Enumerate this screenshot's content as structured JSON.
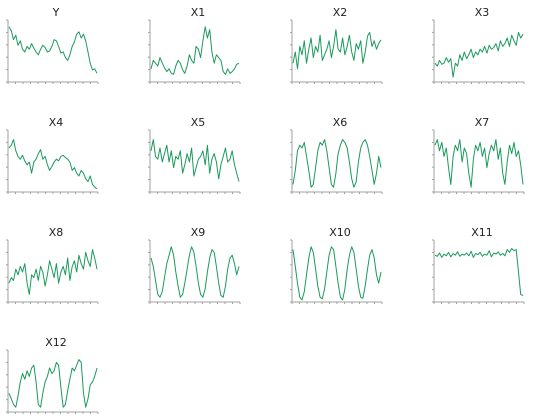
{
  "colors": {
    "line": "#1a9a5c",
    "axis": "#a0a0a0",
    "tick": "#a0a0a0",
    "title": "#222222"
  },
  "chart_data": [
    {
      "type": "line",
      "title": "Y",
      "grid": false,
      "x": [
        1,
        2,
        3,
        4,
        5,
        6,
        7,
        8,
        9,
        10,
        11,
        12,
        13,
        14,
        15,
        16,
        17,
        18,
        19,
        20,
        21,
        22,
        23,
        24,
        25,
        26,
        27,
        28,
        29,
        30,
        31,
        32,
        33,
        34,
        35,
        36,
        37,
        38,
        39,
        40
      ],
      "values": [
        0.95,
        0.88,
        0.72,
        0.8,
        0.62,
        0.7,
        0.55,
        0.5,
        0.6,
        0.55,
        0.65,
        0.57,
        0.5,
        0.45,
        0.55,
        0.62,
        0.58,
        0.5,
        0.52,
        0.6,
        0.72,
        0.7,
        0.6,
        0.48,
        0.5,
        0.4,
        0.35,
        0.45,
        0.6,
        0.68,
        0.82,
        0.86,
        0.75,
        0.82,
        0.7,
        0.5,
        0.3,
        0.18,
        0.2,
        0.12
      ],
      "ylim": [
        0,
        1
      ]
    },
    {
      "type": "line",
      "title": "X1",
      "grid": false,
      "x": [
        1,
        2,
        3,
        4,
        5,
        6,
        7,
        8,
        9,
        10,
        11,
        12,
        13,
        14,
        15,
        16,
        17,
        18,
        19,
        20,
        21,
        22,
        23,
        24,
        25,
        26,
        27,
        28,
        29,
        30,
        31,
        32,
        33,
        34,
        35,
        36,
        37,
        38,
        39,
        40
      ],
      "values": [
        0.2,
        0.35,
        0.3,
        0.25,
        0.4,
        0.3,
        0.22,
        0.15,
        0.2,
        0.12,
        0.1,
        0.25,
        0.35,
        0.3,
        0.18,
        0.12,
        0.25,
        0.45,
        0.35,
        0.3,
        0.6,
        0.55,
        0.4,
        0.7,
        0.95,
        0.75,
        0.9,
        0.5,
        0.3,
        0.45,
        0.4,
        0.35,
        0.15,
        0.1,
        0.2,
        0.12,
        0.15,
        0.2,
        0.28,
        0.3
      ],
      "ylim": [
        0,
        1
      ]
    },
    {
      "type": "line",
      "title": "X2",
      "grid": false,
      "x": [
        1,
        2,
        3,
        4,
        5,
        6,
        7,
        8,
        9,
        10,
        11,
        12,
        13,
        14,
        15,
        16,
        17,
        18,
        19,
        20,
        21,
        22,
        23,
        24,
        25,
        26,
        27,
        28,
        29,
        30,
        31,
        32,
        33,
        34,
        35,
        36,
        37,
        38,
        39,
        40
      ],
      "values": [
        0.3,
        0.5,
        0.2,
        0.6,
        0.45,
        0.7,
        0.3,
        0.55,
        0.75,
        0.4,
        0.6,
        0.5,
        0.8,
        0.35,
        0.45,
        0.55,
        0.7,
        0.4,
        0.6,
        0.9,
        0.55,
        0.5,
        0.75,
        0.45,
        0.6,
        0.8,
        0.5,
        0.35,
        0.65,
        0.55,
        0.7,
        0.3,
        0.5,
        0.78,
        0.85,
        0.6,
        0.7,
        0.55,
        0.65,
        0.72
      ],
      "ylim": [
        0,
        1
      ]
    },
    {
      "type": "line",
      "title": "X3",
      "grid": false,
      "x": [
        1,
        2,
        3,
        4,
        5,
        6,
        7,
        8,
        9,
        10,
        11,
        12,
        13,
        14,
        15,
        16,
        17,
        18,
        19,
        20,
        21,
        22,
        23,
        24,
        25,
        26,
        27,
        28,
        29,
        30,
        31,
        32,
        33,
        34,
        35,
        36,
        37,
        38,
        39,
        40
      ],
      "values": [
        0.3,
        0.25,
        0.35,
        0.28,
        0.3,
        0.4,
        0.32,
        0.38,
        0.05,
        0.3,
        0.25,
        0.45,
        0.35,
        0.5,
        0.38,
        0.45,
        0.55,
        0.4,
        0.5,
        0.45,
        0.55,
        0.5,
        0.6,
        0.48,
        0.62,
        0.55,
        0.58,
        0.65,
        0.52,
        0.7,
        0.6,
        0.65,
        0.75,
        0.6,
        0.8,
        0.7,
        0.62,
        0.85,
        0.75,
        0.82
      ],
      "ylim": [
        0,
        1
      ]
    },
    {
      "type": "line",
      "title": "X4",
      "grid": false,
      "x": [
        1,
        2,
        3,
        4,
        5,
        6,
        7,
        8,
        9,
        10,
        11,
        12,
        13,
        14,
        15,
        16,
        17,
        18,
        19,
        20,
        21,
        22,
        23,
        24,
        25,
        26,
        27,
        28,
        29,
        30,
        31,
        32,
        33,
        34,
        35,
        36,
        37,
        38,
        39,
        40
      ],
      "values": [
        0.75,
        0.8,
        0.9,
        0.7,
        0.6,
        0.55,
        0.62,
        0.52,
        0.45,
        0.5,
        0.3,
        0.5,
        0.55,
        0.65,
        0.72,
        0.55,
        0.6,
        0.45,
        0.35,
        0.42,
        0.5,
        0.55,
        0.52,
        0.6,
        0.62,
        0.58,
        0.55,
        0.5,
        0.35,
        0.4,
        0.3,
        0.25,
        0.35,
        0.3,
        0.2,
        0.15,
        0.25,
        0.1,
        0.05,
        0.02
      ],
      "ylim": [
        0,
        1
      ]
    },
    {
      "type": "line",
      "title": "X5",
      "grid": false,
      "x": [
        1,
        2,
        3,
        4,
        5,
        6,
        7,
        8,
        9,
        10,
        11,
        12,
        13,
        14,
        15,
        16,
        17,
        18,
        19,
        20,
        21,
        22,
        23,
        24,
        25,
        26,
        27,
        28,
        29,
        30,
        31,
        32,
        33,
        34,
        35,
        36,
        37,
        38,
        39,
        40
      ],
      "values": [
        0.7,
        0.9,
        0.6,
        0.55,
        0.75,
        0.5,
        0.65,
        0.8,
        0.5,
        0.7,
        0.4,
        0.6,
        0.55,
        0.7,
        0.3,
        0.45,
        0.65,
        0.5,
        0.75,
        0.25,
        0.4,
        0.55,
        0.6,
        0.7,
        0.45,
        0.8,
        0.3,
        0.55,
        0.65,
        0.5,
        0.2,
        0.45,
        0.6,
        0.75,
        0.5,
        0.55,
        0.7,
        0.45,
        0.3,
        0.15
      ],
      "ylim": [
        0,
        1
      ]
    },
    {
      "type": "line",
      "title": "X6",
      "grid": false,
      "x": [
        1,
        2,
        3,
        4,
        5,
        6,
        7,
        8,
        9,
        10,
        11,
        12,
        13,
        14,
        15,
        16,
        17,
        18,
        19,
        20,
        21,
        22,
        23,
        24,
        25,
        26,
        27,
        28,
        29,
        30,
        31,
        32,
        33,
        34,
        35,
        36,
        37,
        38,
        39,
        40
      ],
      "values": [
        0.1,
        0.35,
        0.7,
        0.8,
        0.75,
        0.85,
        0.6,
        0.35,
        0.05,
        0.1,
        0.4,
        0.7,
        0.85,
        0.8,
        0.9,
        0.7,
        0.4,
        0.1,
        0.05,
        0.3,
        0.65,
        0.8,
        0.9,
        0.85,
        0.75,
        0.5,
        0.2,
        0.05,
        0.15,
        0.5,
        0.75,
        0.85,
        0.9,
        0.8,
        0.6,
        0.35,
        0.1,
        0.3,
        0.6,
        0.4
      ],
      "ylim": [
        0,
        1
      ]
    },
    {
      "type": "line",
      "title": "X7",
      "grid": false,
      "x": [
        1,
        2,
        3,
        4,
        5,
        6,
        7,
        8,
        9,
        10,
        11,
        12,
        13,
        14,
        15,
        16,
        17,
        18,
        19,
        20,
        21,
        22,
        23,
        24,
        25,
        26,
        27,
        28,
        29,
        30,
        31,
        32,
        33,
        34,
        35,
        36,
        37,
        38,
        39,
        40
      ],
      "values": [
        0.8,
        0.9,
        0.7,
        0.85,
        0.6,
        0.75,
        0.4,
        0.1,
        0.6,
        0.8,
        0.7,
        0.9,
        0.5,
        0.75,
        0.65,
        0.3,
        0.05,
        0.55,
        0.8,
        0.7,
        0.85,
        0.6,
        0.75,
        0.4,
        0.65,
        0.8,
        0.7,
        0.9,
        0.55,
        0.75,
        0.3,
        0.1,
        0.5,
        0.8,
        0.65,
        0.85,
        0.6,
        0.7,
        0.45,
        0.1
      ],
      "ylim": [
        0,
        1
      ]
    },
    {
      "type": "line",
      "title": "X8",
      "grid": false,
      "x": [
        1,
        2,
        3,
        4,
        5,
        6,
        7,
        8,
        9,
        10,
        11,
        12,
        13,
        14,
        15,
        16,
        17,
        18,
        19,
        20,
        21,
        22,
        23,
        24,
        25,
        26,
        27,
        28,
        29,
        30,
        31,
        32,
        33,
        34,
        35,
        36,
        37,
        38,
        39,
        40
      ],
      "values": [
        0.3,
        0.4,
        0.35,
        0.55,
        0.45,
        0.6,
        0.5,
        0.65,
        0.3,
        0.1,
        0.45,
        0.4,
        0.55,
        0.35,
        0.6,
        0.5,
        0.25,
        0.45,
        0.7,
        0.55,
        0.4,
        0.65,
        0.3,
        0.5,
        0.6,
        0.45,
        0.75,
        0.35,
        0.6,
        0.7,
        0.5,
        0.8,
        0.65,
        0.55,
        0.85,
        0.7,
        0.6,
        0.9,
        0.75,
        0.55
      ],
      "ylim": [
        0,
        1
      ]
    },
    {
      "type": "line",
      "title": "X9",
      "grid": false,
      "x": [
        1,
        2,
        3,
        4,
        5,
        6,
        7,
        8,
        9,
        10,
        11,
        12,
        13,
        14,
        15,
        16,
        17,
        18,
        19,
        20,
        21,
        22,
        23,
        24,
        25,
        26,
        27,
        28,
        29,
        30,
        31,
        32,
        33,
        34,
        35,
        36,
        37,
        38,
        39,
        40
      ],
      "values": [
        0.75,
        0.6,
        0.35,
        0.1,
        0.05,
        0.15,
        0.4,
        0.65,
        0.8,
        0.95,
        0.8,
        0.5,
        0.25,
        0.05,
        0.1,
        0.3,
        0.55,
        0.8,
        0.95,
        0.85,
        0.6,
        0.3,
        0.1,
        0.05,
        0.2,
        0.5,
        0.75,
        0.9,
        0.85,
        0.6,
        0.3,
        0.08,
        0.05,
        0.25,
        0.55,
        0.75,
        0.8,
        0.65,
        0.45,
        0.6
      ],
      "ylim": [
        0,
        1
      ]
    },
    {
      "type": "line",
      "title": "X10",
      "grid": false,
      "x": [
        1,
        2,
        3,
        4,
        5,
        6,
        7,
        8,
        9,
        10,
        11,
        12,
        13,
        14,
        15,
        16,
        17,
        18,
        19,
        20,
        21,
        22,
        23,
        24,
        25,
        26,
        27,
        28,
        29,
        30,
        31,
        32,
        33,
        34,
        35,
        36,
        37,
        38,
        39,
        40
      ],
      "values": [
        0.9,
        0.6,
        0.3,
        0.05,
        0.0,
        0.15,
        0.45,
        0.75,
        0.95,
        0.85,
        0.55,
        0.25,
        0.05,
        0.02,
        0.2,
        0.5,
        0.8,
        0.95,
        0.9,
        0.6,
        0.3,
        0.05,
        0.0,
        0.2,
        0.55,
        0.8,
        0.95,
        0.85,
        0.55,
        0.25,
        0.05,
        0.03,
        0.25,
        0.55,
        0.8,
        0.9,
        0.75,
        0.45,
        0.3,
        0.5
      ],
      "ylim": [
        0,
        1
      ]
    },
    {
      "type": "line",
      "title": "X11",
      "grid": false,
      "x": [
        1,
        2,
        3,
        4,
        5,
        6,
        7,
        8,
        9,
        10,
        11,
        12,
        13,
        14,
        15,
        16,
        17,
        18,
        19,
        20,
        21,
        22,
        23,
        24,
        25,
        26,
        27,
        28,
        29,
        30,
        31,
        32,
        33,
        34,
        35,
        36,
        37,
        38,
        39,
        40
      ],
      "values": [
        0.8,
        0.78,
        0.84,
        0.76,
        0.82,
        0.79,
        0.85,
        0.77,
        0.83,
        0.8,
        0.86,
        0.78,
        0.82,
        0.8,
        0.84,
        0.79,
        0.87,
        0.76,
        0.83,
        0.81,
        0.85,
        0.78,
        0.82,
        0.8,
        0.88,
        0.77,
        0.84,
        0.82,
        0.86,
        0.8,
        0.83,
        0.79,
        0.9,
        0.85,
        0.92,
        0.88,
        0.9,
        0.5,
        0.1,
        0.08
      ],
      "ylim": [
        0,
        1
      ]
    },
    {
      "type": "line",
      "title": "X12",
      "grid": false,
      "x": [
        1,
        2,
        3,
        4,
        5,
        6,
        7,
        8,
        9,
        10,
        11,
        12,
        13,
        14,
        15,
        16,
        17,
        18,
        19,
        20,
        21,
        22,
        23,
        24,
        25,
        26,
        27,
        28,
        29,
        30,
        31,
        32,
        33,
        34,
        35,
        36,
        37,
        38,
        39,
        40
      ],
      "values": [
        0.3,
        0.2,
        0.1,
        0.05,
        0.25,
        0.5,
        0.65,
        0.55,
        0.7,
        0.6,
        0.75,
        0.8,
        0.5,
        0.1,
        0.05,
        0.3,
        0.5,
        0.6,
        0.75,
        0.65,
        0.7,
        0.85,
        0.8,
        0.4,
        0.05,
        0.1,
        0.35,
        0.55,
        0.75,
        0.7,
        0.8,
        0.9,
        0.85,
        0.3,
        0.05,
        0.2,
        0.45,
        0.5,
        0.6,
        0.75
      ],
      "ylim": [
        0,
        1
      ]
    }
  ]
}
